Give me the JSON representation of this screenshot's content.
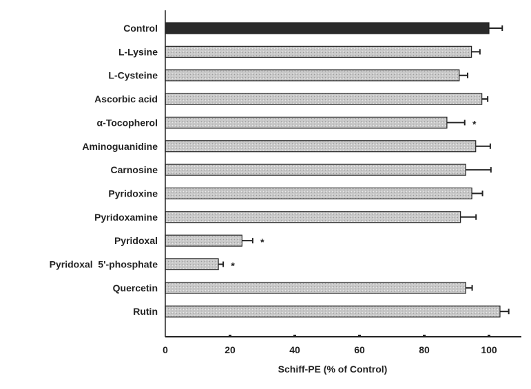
{
  "chart_data": {
    "type": "bar",
    "orientation": "horizontal",
    "categories": [
      "Control",
      "L-Lysine",
      "L-Cysteine",
      "Ascorbic acid",
      "α-Tocopherol",
      "Aminoguanidine",
      "Carnosine",
      "Pyridoxine",
      "Pyridoxamine",
      "Pyridoxal",
      "Pyridoxal  5'-phosphate",
      "Quercetin",
      "Rutin"
    ],
    "values": [
      100,
      94.6,
      90.8,
      97.8,
      87.0,
      95.9,
      92.8,
      94.7,
      91.2,
      23.7,
      16.4,
      92.8,
      103.4
    ],
    "errors": [
      4.1,
      2.6,
      2.6,
      1.8,
      5.5,
      4.5,
      7.8,
      3.3,
      4.8,
      3.3,
      1.5,
      2.0,
      2.7
    ],
    "significant": [
      false,
      false,
      false,
      false,
      true,
      false,
      false,
      false,
      false,
      true,
      true,
      false,
      false
    ],
    "significance_marker": "*",
    "xlabel": "Schiff-PE (% of Control)",
    "ylabel": "",
    "title": "",
    "xlim": [
      0,
      110
    ],
    "xticks": [
      0,
      20,
      40,
      60,
      80,
      100
    ],
    "grid": false,
    "colors": {
      "control": "#2a2a2a",
      "treatment": "#c8c8c8",
      "edge": "#222222"
    }
  }
}
